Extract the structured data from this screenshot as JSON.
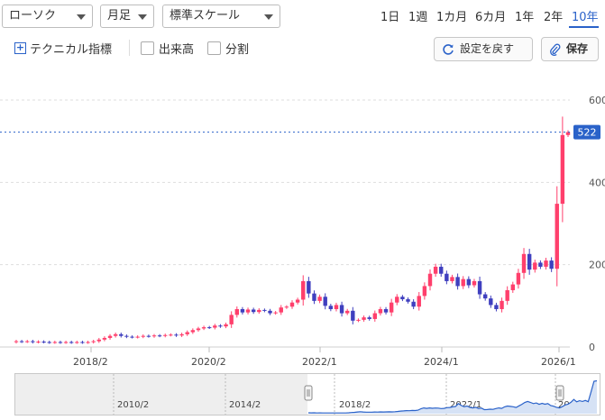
{
  "toolbar": {
    "chart_type": "ローソク",
    "interval": "月足",
    "scale": "標準スケール",
    "periods": [
      "1日",
      "1週",
      "1カ月",
      "6カ月",
      "1年",
      "2年",
      "10年"
    ],
    "active_period": "10年",
    "technical_label": "テクニカル指標",
    "volume_label": "出来高",
    "split_label": "分割",
    "reset_label": "設定を戻す",
    "save_label": "保存"
  },
  "colors": {
    "up": "#ff3f6c",
    "down": "#3f3fbf",
    "accent": "#2a62c9",
    "grid": "#dddddd"
  },
  "chart_data": {
    "type": "candlestick",
    "interval": "monthly",
    "ylim": [
      0,
      600
    ],
    "yticks": [
      0,
      200,
      400,
      600
    ],
    "x_tick_labels": [
      "2018/2",
      "2020/2",
      "2022/1",
      "2024/1",
      "2026/1"
    ],
    "current_price": 522,
    "grid": true,
    "series": [
      {
        "o": 12,
        "c": 14
      },
      {
        "o": 14,
        "c": 13
      },
      {
        "o": 13,
        "c": 14
      },
      {
        "o": 14,
        "c": 12
      },
      {
        "o": 12,
        "c": 13
      },
      {
        "o": 13,
        "c": 12
      },
      {
        "o": 12,
        "c": 11
      },
      {
        "o": 11,
        "c": 12
      },
      {
        "o": 12,
        "c": 11
      },
      {
        "o": 11,
        "c": 12
      },
      {
        "o": 12,
        "c": 11
      },
      {
        "o": 11,
        "c": 12
      },
      {
        "o": 12,
        "c": 11
      },
      {
        "o": 11,
        "c": 12
      },
      {
        "o": 12,
        "c": 14
      },
      {
        "o": 14,
        "c": 18
      },
      {
        "o": 18,
        "c": 22
      },
      {
        "o": 22,
        "c": 27
      },
      {
        "o": 27,
        "c": 31
      },
      {
        "o": 31,
        "c": 27
      },
      {
        "o": 27,
        "c": 25
      },
      {
        "o": 25,
        "c": 24
      },
      {
        "o": 24,
        "c": 25
      },
      {
        "o": 25,
        "c": 27
      },
      {
        "o": 27,
        "c": 26
      },
      {
        "o": 26,
        "c": 28
      },
      {
        "o": 28,
        "c": 27
      },
      {
        "o": 27,
        "c": 29
      },
      {
        "o": 29,
        "c": 30
      },
      {
        "o": 30,
        "c": 28
      },
      {
        "o": 28,
        "c": 31
      },
      {
        "o": 31,
        "c": 36
      },
      {
        "o": 36,
        "c": 41
      },
      {
        "o": 41,
        "c": 45
      },
      {
        "o": 45,
        "c": 48
      },
      {
        "o": 48,
        "c": 47
      },
      {
        "o": 47,
        "c": 52
      },
      {
        "o": 52,
        "c": 50
      },
      {
        "o": 50,
        "c": 55
      },
      {
        "o": 55,
        "c": 78
      },
      {
        "o": 78,
        "c": 92
      },
      {
        "o": 92,
        "c": 84
      },
      {
        "o": 84,
        "c": 91
      },
      {
        "o": 91,
        "c": 85
      },
      {
        "o": 85,
        "c": 90
      },
      {
        "o": 90,
        "c": 88
      },
      {
        "o": 88,
        "c": 82
      },
      {
        "o": 82,
        "c": 84
      },
      {
        "o": 84,
        "c": 96
      },
      {
        "o": 96,
        "c": 98
      },
      {
        "o": 98,
        "c": 108
      },
      {
        "o": 108,
        "c": 115
      },
      {
        "o": 115,
        "c": 160
      },
      {
        "o": 160,
        "c": 130
      },
      {
        "o": 130,
        "c": 112
      },
      {
        "o": 112,
        "c": 122
      },
      {
        "o": 122,
        "c": 100
      },
      {
        "o": 100,
        "c": 92
      },
      {
        "o": 92,
        "c": 102
      },
      {
        "o": 102,
        "c": 82
      },
      {
        "o": 82,
        "c": 88
      },
      {
        "o": 88,
        "c": 64
      },
      {
        "o": 64,
        "c": 66
      },
      {
        "o": 66,
        "c": 72
      },
      {
        "o": 72,
        "c": 68
      },
      {
        "o": 68,
        "c": 82
      },
      {
        "o": 82,
        "c": 92
      },
      {
        "o": 92,
        "c": 84
      },
      {
        "o": 84,
        "c": 108
      },
      {
        "o": 108,
        "c": 122
      },
      {
        "o": 122,
        "c": 116
      },
      {
        "o": 116,
        "c": 110
      },
      {
        "o": 110,
        "c": 98
      },
      {
        "o": 98,
        "c": 124
      },
      {
        "o": 124,
        "c": 148
      },
      {
        "o": 148,
        "c": 178
      },
      {
        "o": 178,
        "c": 195
      },
      {
        "o": 195,
        "c": 178
      },
      {
        "o": 178,
        "c": 160
      },
      {
        "o": 160,
        "c": 170
      },
      {
        "o": 170,
        "c": 148
      },
      {
        "o": 148,
        "c": 165
      },
      {
        "o": 165,
        "c": 150
      },
      {
        "o": 150,
        "c": 160
      },
      {
        "o": 160,
        "c": 128
      },
      {
        "o": 128,
        "c": 118
      },
      {
        "o": 118,
        "c": 102
      },
      {
        "o": 102,
        "c": 92
      },
      {
        "o": 92,
        "c": 112
      },
      {
        "o": 112,
        "c": 138
      },
      {
        "o": 138,
        "c": 152
      },
      {
        "o": 152,
        "c": 180
      },
      {
        "o": 180,
        "c": 226
      },
      {
        "o": 226,
        "c": 188
      },
      {
        "o": 188,
        "c": 205
      },
      {
        "o": 205,
        "c": 195
      },
      {
        "o": 195,
        "c": 210
      },
      {
        "o": 210,
        "c": 190
      },
      {
        "o": 190,
        "c": 348
      },
      {
        "o": 348,
        "c": 515
      },
      {
        "o": 515,
        "c": 522
      }
    ]
  },
  "navigator": {
    "labels": [
      "2010/2",
      "2014/2",
      "2018/2",
      "2022/1",
      "20"
    ]
  }
}
